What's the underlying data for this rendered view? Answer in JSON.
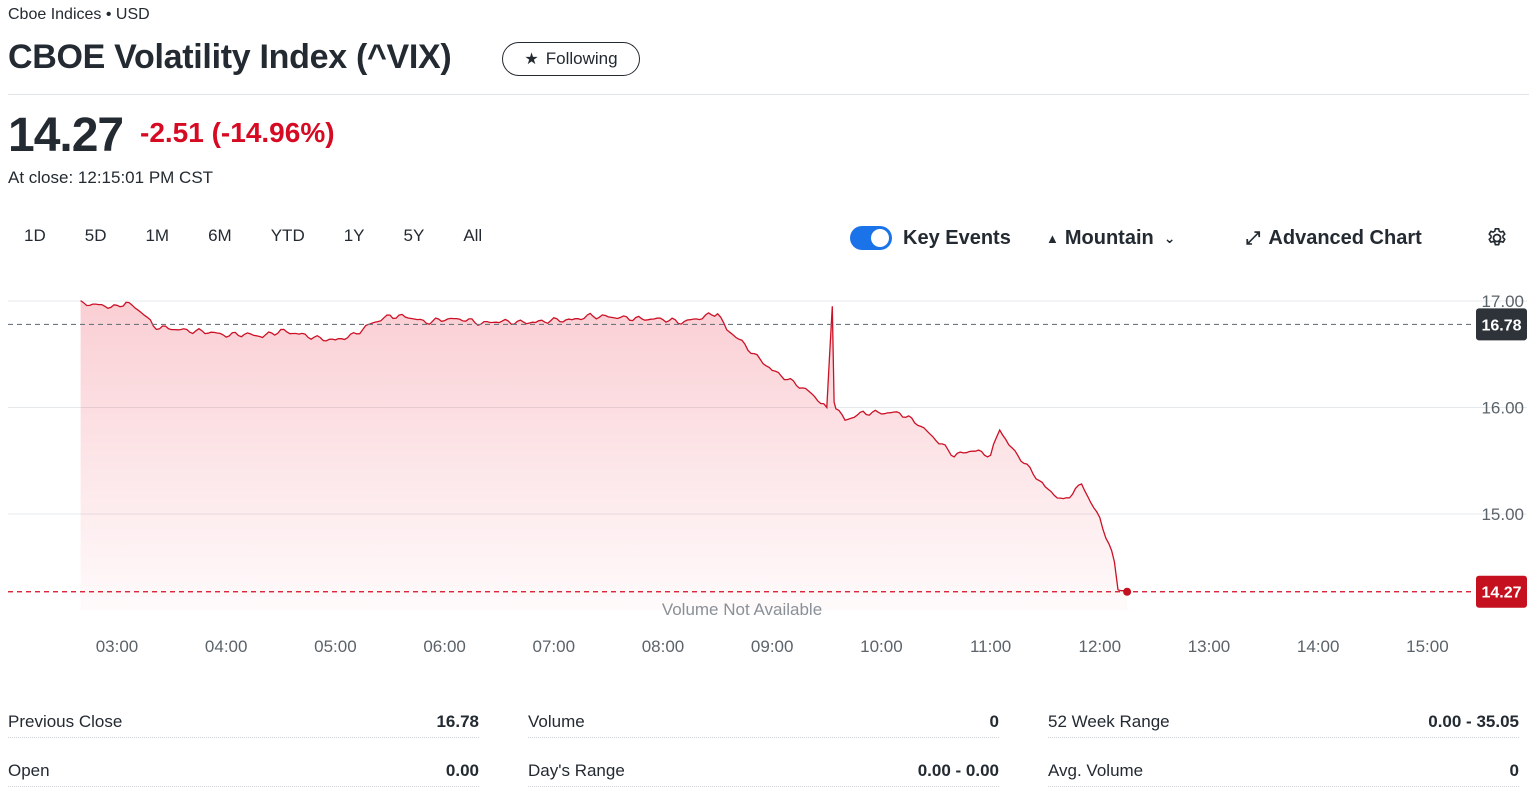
{
  "header": {
    "exchange": "Cboe Indices • USD",
    "title": "CBOE Volatility Index (^VIX)",
    "follow_label": "Following",
    "price": "14.27",
    "change": "-2.51",
    "change_pct": "(-14.96%)",
    "close_time": "At close: 12:15:01 PM CST"
  },
  "toolbar": {
    "ranges": [
      "1D",
      "5D",
      "1M",
      "6M",
      "YTD",
      "1Y",
      "5Y",
      "All"
    ],
    "key_events_label": "Key Events",
    "key_events_on": true,
    "chart_type_label": "Mountain",
    "advanced_chart_label": "Advanced Chart"
  },
  "chart_data": {
    "type": "area",
    "x_label_times": [
      "03:00",
      "04:00",
      "05:00",
      "06:00",
      "07:00",
      "08:00",
      "09:00",
      "10:00",
      "11:00",
      "12:00",
      "13:00",
      "14:00",
      "15:00"
    ],
    "y_ticks": [
      "17.00",
      "16.00",
      "15.00"
    ],
    "ylim": [
      14.1,
      17.1
    ],
    "previous_close": 16.78,
    "previous_close_label": "16.78",
    "last_price": 14.27,
    "last_price_label": "14.27",
    "volume_note": "Volume Not Available",
    "series": [
      {
        "x": [
          "02:40",
          "02:50",
          "03:00",
          "03:05",
          "03:15",
          "03:20",
          "03:30",
          "03:40",
          "03:50",
          "04:00",
          "04:10",
          "04:20",
          "04:30",
          "04:40",
          "04:50",
          "05:00",
          "05:10",
          "05:20",
          "05:30",
          "05:40",
          "05:50",
          "06:00",
          "06:10",
          "06:20",
          "06:30",
          "06:40",
          "06:50",
          "07:00",
          "07:10",
          "07:20",
          "07:30",
          "07:40",
          "07:50",
          "08:00",
          "08:10",
          "08:20",
          "08:30",
          "08:35",
          "08:40",
          "08:50",
          "09:00",
          "09:10",
          "09:20",
          "09:30",
          "09:33",
          "09:34",
          "09:35",
          "09:40",
          "09:50",
          "10:00",
          "10:10",
          "10:20",
          "10:30",
          "10:40",
          "10:50",
          "11:00",
          "11:05",
          "11:10",
          "11:20",
          "11:30",
          "11:40",
          "11:50",
          "12:00",
          "12:05",
          "12:08",
          "12:10",
          "12:15"
        ],
        "y": [
          16.98,
          16.96,
          16.94,
          16.99,
          16.88,
          16.76,
          16.74,
          16.72,
          16.71,
          16.68,
          16.69,
          16.67,
          16.72,
          16.69,
          16.65,
          16.63,
          16.68,
          16.79,
          16.86,
          16.85,
          16.8,
          16.83,
          16.83,
          16.79,
          16.81,
          16.8,
          16.8,
          16.82,
          16.82,
          16.86,
          16.85,
          16.84,
          16.83,
          16.83,
          16.8,
          16.84,
          16.89,
          16.73,
          16.67,
          16.5,
          16.35,
          16.25,
          16.15,
          16.0,
          16.95,
          16.05,
          16.0,
          15.88,
          15.95,
          15.95,
          15.95,
          15.85,
          15.7,
          15.55,
          15.6,
          15.55,
          15.8,
          15.65,
          15.45,
          15.25,
          15.12,
          15.28,
          14.95,
          14.72,
          14.55,
          14.3,
          14.27
        ]
      }
    ]
  },
  "stats": [
    [
      {
        "label": "Previous Close",
        "value": "16.78"
      },
      {
        "label": "Open",
        "value": "0.00"
      }
    ],
    [
      {
        "label": "Volume",
        "value": "0"
      },
      {
        "label": "Day's Range",
        "value": "0.00 - 0.00"
      }
    ],
    [
      {
        "label": "52 Week Range",
        "value": "0.00 - 35.05"
      },
      {
        "label": "Avg. Volume",
        "value": "0"
      }
    ]
  ],
  "colors": {
    "accent_red": "#d60a22",
    "line_red": "#cc1126",
    "toggle_blue": "#1a73e8"
  }
}
